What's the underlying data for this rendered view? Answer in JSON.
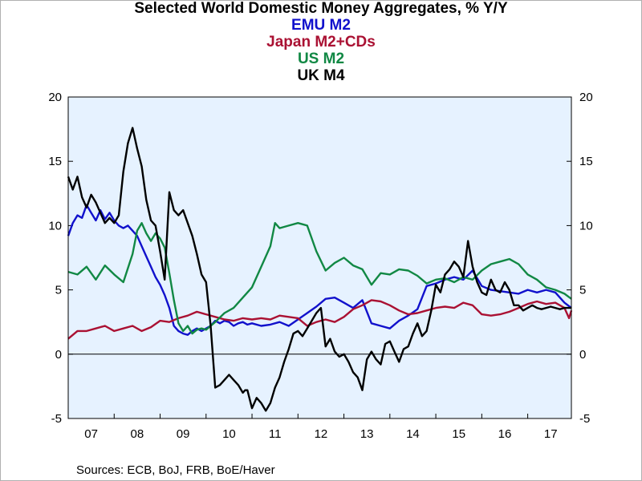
{
  "chart_data": {
    "type": "line",
    "title": "Selected World Domestic Money Aggregates, % Y/Y",
    "source": "Sources:  ECB, BoJ, FRB, BoE/Haver",
    "x_tick_labels": [
      "07",
      "08",
      "09",
      "10",
      "11",
      "12",
      "13",
      "14",
      "15",
      "16",
      "17"
    ],
    "x_range": [
      2007.0,
      2017.95
    ],
    "ylim": [
      -5,
      20
    ],
    "y_ticks": [
      -5,
      0,
      5,
      10,
      15,
      20
    ],
    "grid": false,
    "zero_line": true,
    "dual_axis": true,
    "background_color": "#e6f2ff",
    "series": [
      {
        "name": "EMU M2",
        "color": "#1111cc",
        "x": [
          2007.0,
          2007.1,
          2007.2,
          2007.3,
          2007.4,
          2007.5,
          2007.6,
          2007.7,
          2007.8,
          2007.9,
          2008.0,
          2008.1,
          2008.2,
          2008.3,
          2008.4,
          2008.5,
          2008.6,
          2008.7,
          2008.8,
          2008.9,
          2009.0,
          2009.1,
          2009.2,
          2009.3,
          2009.4,
          2009.5,
          2009.6,
          2009.7,
          2009.8,
          2009.9,
          2010.0,
          2010.1,
          2010.2,
          2010.3,
          2010.4,
          2010.5,
          2010.6,
          2010.7,
          2010.8,
          2010.9,
          2011.0,
          2011.2,
          2011.4,
          2011.6,
          2011.8,
          2012.0,
          2012.2,
          2012.4,
          2012.6,
          2012.8,
          2013.0,
          2013.2,
          2013.4,
          2013.6,
          2013.8,
          2014.0,
          2014.2,
          2014.4,
          2014.6,
          2014.8,
          2015.0,
          2015.2,
          2015.4,
          2015.6,
          2015.8,
          2016.0,
          2016.2,
          2016.4,
          2016.6,
          2016.8,
          2017.0,
          2017.2,
          2017.4,
          2017.6,
          2017.8,
          2017.95
        ],
        "values": [
          9.2,
          10.2,
          10.8,
          10.6,
          11.6,
          11.0,
          10.4,
          11.2,
          10.5,
          11.0,
          10.4,
          10.0,
          9.8,
          10.0,
          9.6,
          9.2,
          8.4,
          7.6,
          6.8,
          6.0,
          5.4,
          4.6,
          3.6,
          2.2,
          1.8,
          1.6,
          1.5,
          1.8,
          2.0,
          1.8,
          2.0,
          2.2,
          2.6,
          2.4,
          2.6,
          2.5,
          2.2,
          2.4,
          2.5,
          2.3,
          2.4,
          2.2,
          2.3,
          2.5,
          2.2,
          2.7,
          3.2,
          3.7,
          4.3,
          4.4,
          4.0,
          3.6,
          4.2,
          2.4,
          2.2,
          2.0,
          2.6,
          3.0,
          3.5,
          5.3,
          5.5,
          5.8,
          6.0,
          5.8,
          6.5,
          5.3,
          5.0,
          4.9,
          4.8,
          4.7,
          5.0,
          4.8,
          5.0,
          4.8,
          4.0,
          3.6
        ]
      },
      {
        "name": "Japan M2+CDs",
        "color": "#aa1133",
        "x": [
          2007.0,
          2007.2,
          2007.4,
          2007.6,
          2007.8,
          2008.0,
          2008.2,
          2008.4,
          2008.6,
          2008.8,
          2009.0,
          2009.2,
          2009.4,
          2009.6,
          2009.8,
          2010.0,
          2010.2,
          2010.4,
          2010.6,
          2010.8,
          2011.0,
          2011.2,
          2011.4,
          2011.6,
          2011.8,
          2012.0,
          2012.2,
          2012.4,
          2012.6,
          2012.8,
          2013.0,
          2013.2,
          2013.4,
          2013.6,
          2013.8,
          2014.0,
          2014.2,
          2014.4,
          2014.6,
          2014.8,
          2015.0,
          2015.2,
          2015.4,
          2015.6,
          2015.8,
          2016.0,
          2016.2,
          2016.4,
          2016.6,
          2016.8,
          2017.0,
          2017.2,
          2017.4,
          2017.6,
          2017.8,
          2017.9,
          2017.95
        ],
        "values": [
          1.2,
          1.8,
          1.8,
          2.0,
          2.2,
          1.8,
          2.0,
          2.2,
          1.8,
          2.1,
          2.6,
          2.5,
          2.8,
          3.0,
          3.3,
          3.1,
          2.9,
          2.7,
          2.6,
          2.8,
          2.7,
          2.8,
          2.7,
          3.0,
          2.9,
          2.8,
          2.2,
          2.5,
          2.7,
          2.5,
          2.9,
          3.5,
          3.8,
          4.2,
          4.1,
          3.8,
          3.4,
          3.1,
          3.2,
          3.4,
          3.6,
          3.7,
          3.6,
          4.0,
          3.8,
          3.1,
          3.0,
          3.1,
          3.3,
          3.6,
          3.9,
          4.1,
          3.9,
          4.0,
          3.6,
          2.8,
          3.4
        ]
      },
      {
        "name": "US M2",
        "color": "#118844",
        "x": [
          2007.0,
          2007.2,
          2007.4,
          2007.6,
          2007.8,
          2008.0,
          2008.2,
          2008.4,
          2008.5,
          2008.6,
          2008.7,
          2008.8,
          2008.9,
          2009.0,
          2009.1,
          2009.2,
          2009.3,
          2009.4,
          2009.5,
          2009.6,
          2009.7,
          2009.8,
          2009.9,
          2010.0,
          2010.2,
          2010.4,
          2010.6,
          2010.8,
          2011.0,
          2011.2,
          2011.4,
          2011.5,
          2011.6,
          2011.8,
          2012.0,
          2012.2,
          2012.4,
          2012.6,
          2012.8,
          2013.0,
          2013.2,
          2013.4,
          2013.6,
          2013.8,
          2014.0,
          2014.2,
          2014.4,
          2014.6,
          2014.8,
          2015.0,
          2015.2,
          2015.4,
          2015.6,
          2015.8,
          2016.0,
          2016.2,
          2016.4,
          2016.6,
          2016.8,
          2017.0,
          2017.2,
          2017.4,
          2017.6,
          2017.8,
          2017.95
        ],
        "values": [
          6.4,
          6.2,
          6.8,
          5.8,
          6.9,
          6.2,
          5.6,
          7.8,
          9.6,
          10.2,
          9.4,
          8.8,
          9.4,
          9.0,
          8.3,
          6.3,
          4.2,
          2.4,
          1.8,
          2.2,
          1.6,
          1.9,
          2.0,
          1.9,
          2.5,
          3.2,
          3.6,
          4.4,
          5.2,
          6.8,
          8.4,
          10.2,
          9.8,
          10.0,
          10.2,
          10.0,
          8.0,
          6.5,
          7.1,
          7.5,
          6.9,
          6.6,
          5.4,
          6.3,
          6.2,
          6.6,
          6.5,
          6.1,
          5.5,
          5.8,
          5.9,
          5.6,
          6.0,
          5.8,
          6.5,
          7.0,
          7.2,
          7.4,
          7.0,
          6.2,
          5.8,
          5.2,
          5.0,
          4.7,
          4.3
        ]
      },
      {
        "name": "UK M4",
        "color": "#000000",
        "x": [
          2007.0,
          2007.1,
          2007.2,
          2007.3,
          2007.4,
          2007.5,
          2007.6,
          2007.7,
          2007.8,
          2007.9,
          2008.0,
          2008.1,
          2008.2,
          2008.3,
          2008.4,
          2008.5,
          2008.6,
          2008.7,
          2008.8,
          2008.9,
          2009.0,
          2009.1,
          2009.2,
          2009.3,
          2009.4,
          2009.5,
          2009.6,
          2009.7,
          2009.8,
          2009.9,
          2010.0,
          2010.1,
          2010.2,
          2010.3,
          2010.4,
          2010.5,
          2010.6,
          2010.7,
          2010.8,
          2010.85,
          2010.9,
          2011.0,
          2011.1,
          2011.2,
          2011.3,
          2011.4,
          2011.5,
          2011.6,
          2011.7,
          2011.8,
          2011.9,
          2012.0,
          2012.1,
          2012.2,
          2012.3,
          2012.4,
          2012.5,
          2012.6,
          2012.7,
          2012.8,
          2012.9,
          2013.0,
          2013.1,
          2013.2,
          2013.3,
          2013.4,
          2013.5,
          2013.6,
          2013.7,
          2013.8,
          2013.9,
          2014.0,
          2014.1,
          2014.2,
          2014.3,
          2014.4,
          2014.5,
          2014.6,
          2014.7,
          2014.8,
          2014.9,
          2015.0,
          2015.1,
          2015.2,
          2015.3,
          2015.4,
          2015.5,
          2015.6,
          2015.7,
          2015.8,
          2015.9,
          2016.0,
          2016.1,
          2016.2,
          2016.3,
          2016.4,
          2016.5,
          2016.6,
          2016.7,
          2016.8,
          2016.9,
          2017.0,
          2017.1,
          2017.2,
          2017.3,
          2017.4,
          2017.5,
          2017.6,
          2017.7,
          2017.8,
          2017.9,
          2017.95
        ],
        "values": [
          13.8,
          12.8,
          13.8,
          12.2,
          11.4,
          12.4,
          11.8,
          11.0,
          10.2,
          10.6,
          10.2,
          10.8,
          14.2,
          16.4,
          17.6,
          16.0,
          14.6,
          12.0,
          10.4,
          10.0,
          8.0,
          5.8,
          12.6,
          11.2,
          10.8,
          11.2,
          10.2,
          9.2,
          7.8,
          6.2,
          5.6,
          2.2,
          -2.6,
          -2.4,
          -2.0,
          -1.6,
          -2.0,
          -2.4,
          -3.0,
          -2.8,
          -2.8,
          -4.2,
          -3.4,
          -3.8,
          -4.4,
          -3.8,
          -2.6,
          -1.8,
          -0.6,
          0.4,
          1.6,
          1.8,
          1.4,
          2.0,
          2.6,
          3.2,
          3.6,
          0.6,
          1.2,
          0.2,
          -0.2,
          0.0,
          -0.6,
          -1.4,
          -1.8,
          -2.8,
          -0.4,
          0.2,
          -0.4,
          -0.8,
          0.8,
          1.0,
          0.2,
          -0.6,
          0.4,
          0.6,
          1.6,
          2.4,
          1.4,
          1.8,
          3.4,
          5.4,
          4.8,
          6.2,
          6.6,
          7.2,
          6.8,
          6.0,
          8.8,
          6.8,
          5.6,
          4.8,
          4.6,
          5.8,
          5.0,
          4.8,
          5.6,
          5.0,
          3.8,
          3.8,
          3.4,
          3.6,
          3.8,
          3.6,
          3.5,
          3.6,
          3.7,
          3.6,
          3.5,
          3.6,
          3.6,
          3.6
        ]
      }
    ]
  }
}
